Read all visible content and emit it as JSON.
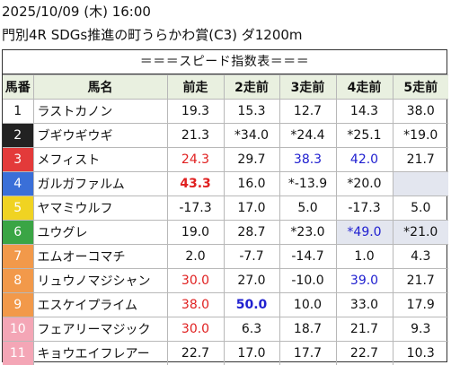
{
  "header": {
    "date_line": "2025/10/09 (木) 16:00",
    "race_line": "門別4R SDGs推進の町うらかわ賞(C3) ダ1200m"
  },
  "table": {
    "subtitle": "＝＝＝スピード指数表＝＝＝",
    "columns": [
      "馬番",
      "馬名",
      "前走",
      "2走前",
      "3走前",
      "4走前",
      "5走前"
    ],
    "rows": [
      {
        "num": "1",
        "name": "ラストカノン",
        "vals": [
          {
            "t": "19.3"
          },
          {
            "t": "15.3"
          },
          {
            "t": "12.7"
          },
          {
            "t": "14.3"
          },
          {
            "t": "38.0"
          }
        ]
      },
      {
        "num": "2",
        "name": "ブギウギウギ",
        "vals": [
          {
            "t": "21.3"
          },
          {
            "t": "*34.0"
          },
          {
            "t": "*24.4"
          },
          {
            "t": "*25.1"
          },
          {
            "t": "*19.0"
          }
        ]
      },
      {
        "num": "3",
        "name": "メフィスト",
        "vals": [
          {
            "t": "24.3",
            "c": "red"
          },
          {
            "t": "29.7"
          },
          {
            "t": "38.3",
            "c": "blue"
          },
          {
            "t": "42.0",
            "c": "blue"
          },
          {
            "t": "21.7"
          }
        ]
      },
      {
        "num": "4",
        "name": "ガルガファルム",
        "vals": [
          {
            "t": "43.3",
            "c": "red bold"
          },
          {
            "t": "16.0"
          },
          {
            "t": "*-13.9"
          },
          {
            "t": "*20.0"
          },
          {
            "t": "",
            "shade": true
          }
        ]
      },
      {
        "num": "5",
        "name": "ヤマミウルフ",
        "vals": [
          {
            "t": "-17.3"
          },
          {
            "t": "17.0"
          },
          {
            "t": "5.0"
          },
          {
            "t": "-17.3"
          },
          {
            "t": "5.0"
          }
        ]
      },
      {
        "num": "6",
        "name": "ユウグレ",
        "vals": [
          {
            "t": "19.0"
          },
          {
            "t": "28.7"
          },
          {
            "t": "*23.0"
          },
          {
            "t": "*49.0",
            "c": "blue",
            "shade": true
          },
          {
            "t": "*21.0",
            "shade": true
          }
        ]
      },
      {
        "num": "7",
        "name": "エムオーコマチ",
        "vals": [
          {
            "t": "2.0"
          },
          {
            "t": "-7.7"
          },
          {
            "t": "-14.7"
          },
          {
            "t": "1.0"
          },
          {
            "t": "4.3"
          }
        ]
      },
      {
        "num": "8",
        "name": "リュウノマジシャン",
        "vals": [
          {
            "t": "30.0",
            "c": "red"
          },
          {
            "t": "27.0"
          },
          {
            "t": "-10.0"
          },
          {
            "t": "39.0",
            "c": "blue"
          },
          {
            "t": "21.7"
          }
        ]
      },
      {
        "num": "9",
        "name": "エスケイプライム",
        "vals": [
          {
            "t": "38.0",
            "c": "red"
          },
          {
            "t": "50.0",
            "c": "blue bold"
          },
          {
            "t": "10.0"
          },
          {
            "t": "33.0"
          },
          {
            "t": "17.9"
          }
        ]
      },
      {
        "num": "10",
        "name": "フェアリーマジック",
        "vals": [
          {
            "t": "30.0",
            "c": "red"
          },
          {
            "t": "6.3"
          },
          {
            "t": "18.7"
          },
          {
            "t": "21.7"
          },
          {
            "t": "9.3"
          }
        ]
      },
      {
        "num": "11",
        "name": "キョウエイフレアー",
        "vals": [
          {
            "t": "22.7"
          },
          {
            "t": "17.0"
          },
          {
            "t": "17.7"
          },
          {
            "t": "22.7"
          },
          {
            "t": "10.3"
          }
        ]
      }
    ]
  }
}
